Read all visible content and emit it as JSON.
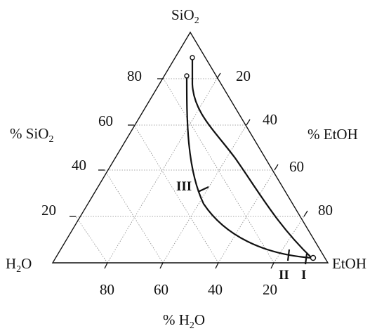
{
  "diagram": {
    "type": "ternary",
    "vertices": {
      "top": {
        "main": "SiO",
        "sub": "2"
      },
      "left": {
        "main": "H",
        "sub": "2",
        "after": "O"
      },
      "right": {
        "main": "EtOH"
      }
    },
    "axes": {
      "left": {
        "label_main": "% SiO",
        "label_sub": "2",
        "ticks": [
          "80",
          "60",
          "40",
          "20"
        ]
      },
      "right": {
        "label": "% EtOH",
        "ticks": [
          "20",
          "40",
          "60",
          "80"
        ]
      },
      "bottom": {
        "label_main": "% H",
        "label_sub": "2",
        "label_after": "O",
        "ticks": [
          "80",
          "60",
          "40",
          "20"
        ]
      }
    },
    "gridlines": true,
    "region_labels": [
      "I",
      "II",
      "III"
    ],
    "colors": {
      "lines": "#111111",
      "grid": "#8a8a8a",
      "background": "#ffffff"
    }
  }
}
